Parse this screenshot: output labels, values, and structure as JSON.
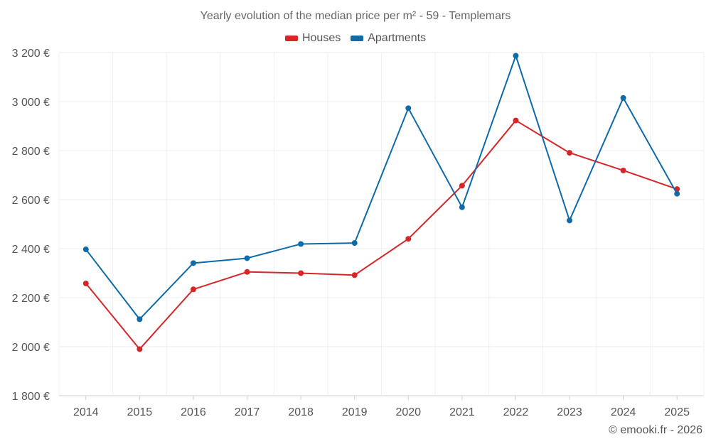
{
  "chart_data": {
    "type": "line",
    "title": "Yearly evolution of the median price per m² - 59 - Templemars",
    "xlabel": "",
    "ylabel": "",
    "categories": [
      "2014",
      "2015",
      "2016",
      "2017",
      "2018",
      "2019",
      "2020",
      "2021",
      "2022",
      "2023",
      "2024",
      "2025"
    ],
    "series": [
      {
        "name": "Houses",
        "color": "#d62728",
        "values": [
          2258,
          1990,
          2234,
          2305,
          2300,
          2292,
          2440,
          2657,
          2923,
          2791,
          2719,
          2643
        ]
      },
      {
        "name": "Apartments",
        "color": "#0e6ba8",
        "values": [
          2397,
          2112,
          2341,
          2361,
          2419,
          2423,
          2973,
          2569,
          3187,
          2515,
          3015,
          2624
        ]
      }
    ],
    "ylim": [
      1800,
      3200
    ],
    "yticks": [
      1800,
      2000,
      2200,
      2400,
      2600,
      2800,
      3000,
      3200
    ],
    "ytick_labels": [
      "1 800 €",
      "2 000 €",
      "2 200 €",
      "2 400 €",
      "2 600 €",
      "2 800 €",
      "3 000 €",
      "3 200 €"
    ],
    "grid": true,
    "legend_position": "top-center"
  },
  "credit": "© emooki.fr - 2026"
}
